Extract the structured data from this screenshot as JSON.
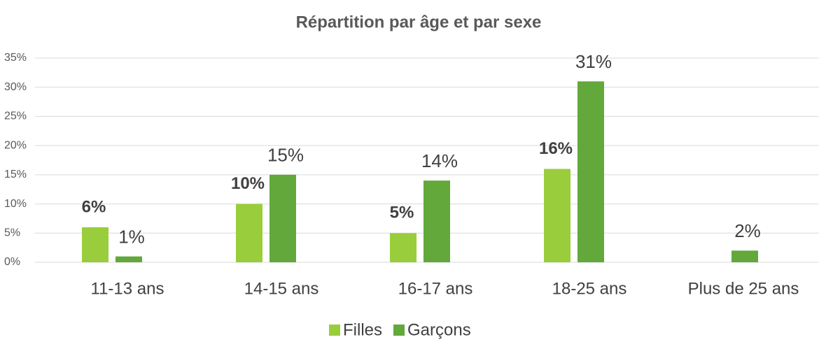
{
  "chart_data": {
    "type": "bar",
    "title": "Répartition par âge et par sexe",
    "categories": [
      "11-13 ans",
      "14-15 ans",
      "16-17 ans",
      "18-25 ans",
      "Plus de 25 ans"
    ],
    "series": [
      {
        "name": "Filles",
        "color": "#9acd3b",
        "values": [
          6,
          10,
          5,
          16,
          null
        ],
        "value_labels": [
          "6%",
          "10%",
          "5%",
          "16%",
          null
        ]
      },
      {
        "name": "Garçons",
        "color": "#62a83a",
        "values": [
          1,
          15,
          14,
          31,
          2
        ],
        "value_labels": [
          "1%",
          "15%",
          "14%",
          "31%",
          "2%"
        ]
      }
    ],
    "ylim": [
      0,
      35
    ],
    "yticks": [
      {
        "value": 0,
        "label": "0%"
      },
      {
        "value": 5,
        "label": "5%"
      },
      {
        "value": 10,
        "label": "10%"
      },
      {
        "value": 15,
        "label": "15%"
      },
      {
        "value": 20,
        "label": "20%"
      },
      {
        "value": 25,
        "label": "25%"
      },
      {
        "value": 30,
        "label": "30%"
      },
      {
        "value": 35,
        "label": "35%"
      }
    ],
    "grid": true,
    "legend": "bottom"
  }
}
